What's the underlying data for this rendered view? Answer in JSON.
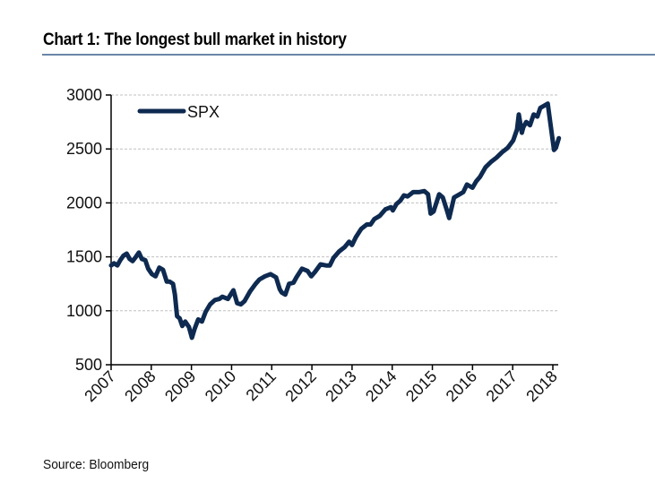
{
  "header": {
    "title": "Chart 1: The longest bull market in history"
  },
  "footer": {
    "source": "Source: Bloomberg"
  },
  "colors": {
    "line": "#0e2a50",
    "rule": "#6a86a8",
    "grid": "#c0c0c0"
  },
  "chart_data": {
    "type": "line",
    "title": "Chart 1: The longest bull market in history",
    "xlabel": "",
    "ylabel": "",
    "xlim": [
      2007,
      2018.15
    ],
    "ylim": [
      500,
      3000
    ],
    "yticks": [
      500,
      1000,
      1500,
      2000,
      2500,
      3000
    ],
    "xticks": [
      "2007",
      "2008",
      "2009",
      "2010",
      "2011",
      "2012",
      "2013",
      "2014",
      "2015",
      "2016",
      "2017",
      "2018"
    ],
    "grid": "horizontal dashed",
    "legend": {
      "position": "top-left",
      "entries": [
        "SPX"
      ]
    },
    "series": [
      {
        "name": "SPX",
        "x": [
          2007.0,
          2007.08,
          2007.17,
          2007.25,
          2007.33,
          2007.42,
          2007.5,
          2007.58,
          2007.67,
          2007.75,
          2007.83,
          2007.92,
          2008.0,
          2008.1,
          2008.2,
          2008.3,
          2008.4,
          2008.5,
          2008.58,
          2008.67,
          2008.72,
          2008.78,
          2008.85,
          2008.92,
          2009.0,
          2009.1,
          2009.18,
          2009.25,
          2009.35,
          2009.45,
          2009.55,
          2009.67,
          2009.8,
          2009.92,
          2010.0,
          2010.15,
          2010.3,
          2010.4,
          2010.5,
          2010.6,
          2010.75,
          2010.9,
          2011.0,
          2011.15,
          2011.3,
          2011.45,
          2011.55,
          2011.6,
          2011.7,
          2011.8,
          2011.92,
          2012.0,
          2012.15,
          2012.3,
          2012.4,
          2012.5,
          2012.65,
          2012.8,
          2012.9,
          2013.0,
          2013.15,
          2013.3,
          2013.42,
          2013.5,
          2013.6,
          2013.75,
          2013.9,
          2014.0,
          2014.1,
          2014.25,
          2014.4,
          2014.55,
          2014.6,
          2014.7,
          2014.8,
          2014.9,
          2015.0,
          2015.15,
          2015.3,
          2015.45,
          2015.55,
          2015.62,
          2015.7,
          2015.85,
          2015.95,
          2016.05,
          2016.12,
          2016.25,
          2016.4,
          2016.5,
          2016.6,
          2016.75,
          2016.85,
          2016.95,
          2017.1,
          2017.25,
          2017.4,
          2017.55,
          2017.7,
          2017.85,
          2017.95,
          2018.0,
          2018.08,
          2018.12,
          2018.2,
          2018.3,
          2018.4,
          2018.5,
          2018.58,
          2018.68,
          2018.78,
          2018.85,
          2018.95,
          2019.0,
          2019.08
        ],
        "values": [
          1420,
          1440,
          1420,
          1470,
          1510,
          1530,
          1480,
          1460,
          1500,
          1540,
          1480,
          1470,
          1390,
          1340,
          1320,
          1400,
          1380,
          1270,
          1270,
          1250,
          1150,
          950,
          930,
          860,
          900,
          850,
          750,
          830,
          920,
          900,
          990,
          1060,
          1100,
          1110,
          1130,
          1110,
          1190,
          1070,
          1060,
          1090,
          1180,
          1250,
          1290,
          1320,
          1340,
          1310,
          1200,
          1170,
          1150,
          1250,
          1260,
          1310,
          1390,
          1370,
          1320,
          1360,
          1430,
          1420,
          1420,
          1490,
          1550,
          1590,
          1640,
          1610,
          1680,
          1760,
          1800,
          1800,
          1850,
          1880,
          1940,
          1960,
          1930,
          1990,
          2020,
          2070,
          2060,
          2100,
          2100,
          2110,
          2080,
          1900,
          1920,
          2080,
          2050,
          1940,
          1860,
          2050,
          2080,
          2100,
          2170,
          2140,
          2200,
          2240,
          2330,
          2380,
          2420,
          2470,
          2510,
          2580,
          2680,
          2820,
          2650,
          2700,
          2750,
          2720,
          2820,
          2800,
          2880,
          2900,
          2920,
          2740,
          2490,
          2510,
          2600
        ],
        "note": "values approximated from plot; line spans 2007 through ~2018.15 on the axis"
      }
    ]
  }
}
